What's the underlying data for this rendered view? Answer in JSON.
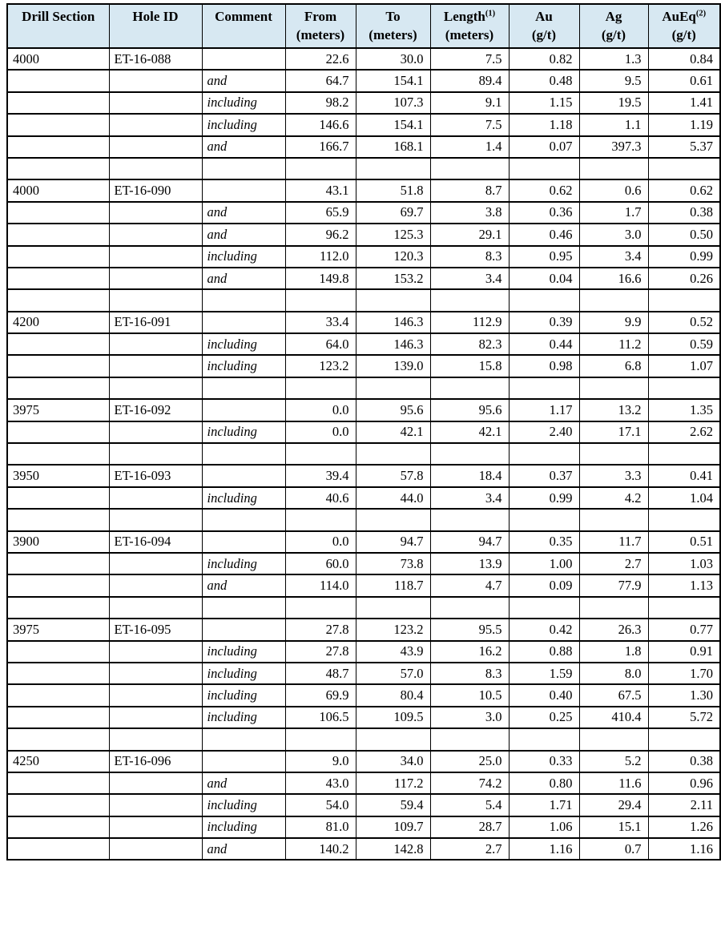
{
  "colors": {
    "header_bg": "#d7e8f2",
    "border": "#000000",
    "text": "#000000"
  },
  "table": {
    "columns": [
      {
        "key": "drill-section",
        "label": "Drill Section",
        "sup": "",
        "unit": ""
      },
      {
        "key": "hole-id",
        "label": "Hole ID",
        "sup": "",
        "unit": ""
      },
      {
        "key": "comment",
        "label": "Comment",
        "sup": "",
        "unit": ""
      },
      {
        "key": "from",
        "label": "From",
        "sup": "",
        "unit": "(meters)"
      },
      {
        "key": "to",
        "label": "To",
        "sup": "",
        "unit": "(meters)"
      },
      {
        "key": "length",
        "label": "Length",
        "sup": "(1)",
        "unit": "(meters)"
      },
      {
        "key": "au",
        "label": "Au",
        "sup": "",
        "unit": "(g/t)"
      },
      {
        "key": "ag",
        "label": "Ag",
        "sup": "",
        "unit": "(g/t)"
      },
      {
        "key": "aueq",
        "label": "AuEq",
        "sup": "(2)",
        "unit": "(g/t)"
      }
    ],
    "rows": [
      [
        "4000",
        "ET-16-088",
        "",
        "22.6",
        "30.0",
        "7.5",
        "0.82",
        "1.3",
        "0.84"
      ],
      [
        "",
        "",
        "and",
        "64.7",
        "154.1",
        "89.4",
        "0.48",
        "9.5",
        "0.61"
      ],
      [
        "",
        "",
        "including",
        "98.2",
        "107.3",
        "9.1",
        "1.15",
        "19.5",
        "1.41"
      ],
      [
        "",
        "",
        "including",
        "146.6",
        "154.1",
        "7.5",
        "1.18",
        "1.1",
        "1.19"
      ],
      [
        "",
        "",
        "and",
        "166.7",
        "168.1",
        "1.4",
        "0.07",
        "397.3",
        "5.37"
      ],
      [
        "",
        "",
        "",
        "",
        "",
        "",
        "",
        "",
        ""
      ],
      [
        "4000",
        "ET-16-090",
        "",
        "43.1",
        "51.8",
        "8.7",
        "0.62",
        "0.6",
        "0.62"
      ],
      [
        "",
        "",
        "and",
        "65.9",
        "69.7",
        "3.8",
        "0.36",
        "1.7",
        "0.38"
      ],
      [
        "",
        "",
        "and",
        "96.2",
        "125.3",
        "29.1",
        "0.46",
        "3.0",
        "0.50"
      ],
      [
        "",
        "",
        "including",
        "112.0",
        "120.3",
        "8.3",
        "0.95",
        "3.4",
        "0.99"
      ],
      [
        "",
        "",
        "and",
        "149.8",
        "153.2",
        "3.4",
        "0.04",
        "16.6",
        "0.26"
      ],
      [
        "",
        "",
        "",
        "",
        "",
        "",
        "",
        "",
        ""
      ],
      [
        "4200",
        "ET-16-091",
        "",
        "33.4",
        "146.3",
        "112.9",
        "0.39",
        "9.9",
        "0.52"
      ],
      [
        "",
        "",
        "including",
        "64.0",
        "146.3",
        "82.3",
        "0.44",
        "11.2",
        "0.59"
      ],
      [
        "",
        "",
        "including",
        "123.2",
        "139.0",
        "15.8",
        "0.98",
        "6.8",
        "1.07"
      ],
      [
        "",
        "",
        "",
        "",
        "",
        "",
        "",
        "",
        ""
      ],
      [
        "3975",
        "ET-16-092",
        "",
        "0.0",
        "95.6",
        "95.6",
        "1.17",
        "13.2",
        "1.35"
      ],
      [
        "",
        "",
        "including",
        "0.0",
        "42.1",
        "42.1",
        "2.40",
        "17.1",
        "2.62"
      ],
      [
        "",
        "",
        "",
        "",
        "",
        "",
        "",
        "",
        ""
      ],
      [
        "3950",
        "ET-16-093",
        "",
        "39.4",
        "57.8",
        "18.4",
        "0.37",
        "3.3",
        "0.41"
      ],
      [
        "",
        "",
        "including",
        "40.6",
        "44.0",
        "3.4",
        "0.99",
        "4.2",
        "1.04"
      ],
      [
        "",
        "",
        "",
        "",
        "",
        "",
        "",
        "",
        ""
      ],
      [
        "3900",
        "ET-16-094",
        "",
        "0.0",
        "94.7",
        "94.7",
        "0.35",
        "11.7",
        "0.51"
      ],
      [
        "",
        "",
        "including",
        "60.0",
        "73.8",
        "13.9",
        "1.00",
        "2.7",
        "1.03"
      ],
      [
        "",
        "",
        "and",
        "114.0",
        "118.7",
        "4.7",
        "0.09",
        "77.9",
        "1.13"
      ],
      [
        "",
        "",
        "",
        "",
        "",
        "",
        "",
        "",
        ""
      ],
      [
        "3975",
        "ET-16-095",
        "",
        "27.8",
        "123.2",
        "95.5",
        "0.42",
        "26.3",
        "0.77"
      ],
      [
        "",
        "",
        "including",
        "27.8",
        "43.9",
        "16.2",
        "0.88",
        "1.8",
        "0.91"
      ],
      [
        "",
        "",
        "including",
        "48.7",
        "57.0",
        "8.3",
        "1.59",
        "8.0",
        "1.70"
      ],
      [
        "",
        "",
        "including",
        "69.9",
        "80.4",
        "10.5",
        "0.40",
        "67.5",
        "1.30"
      ],
      [
        "",
        "",
        "including",
        "106.5",
        "109.5",
        "3.0",
        "0.25",
        "410.4",
        "5.72"
      ],
      [
        "",
        "",
        "",
        "",
        "",
        "",
        "",
        "",
        ""
      ],
      [
        "4250",
        "ET-16-096",
        "",
        "9.0",
        "34.0",
        "25.0",
        "0.33",
        "5.2",
        "0.38"
      ],
      [
        "",
        "",
        "and",
        "43.0",
        "117.2",
        "74.2",
        "0.80",
        "11.6",
        "0.96"
      ],
      [
        "",
        "",
        "including",
        "54.0",
        "59.4",
        "5.4",
        "1.71",
        "29.4",
        "2.11"
      ],
      [
        "",
        "",
        "including",
        "81.0",
        "109.7",
        "28.7",
        "1.06",
        "15.1",
        "1.26"
      ],
      [
        "",
        "",
        "and",
        "140.2",
        "142.8",
        "2.7",
        "1.16",
        "0.7",
        "1.16"
      ]
    ]
  }
}
